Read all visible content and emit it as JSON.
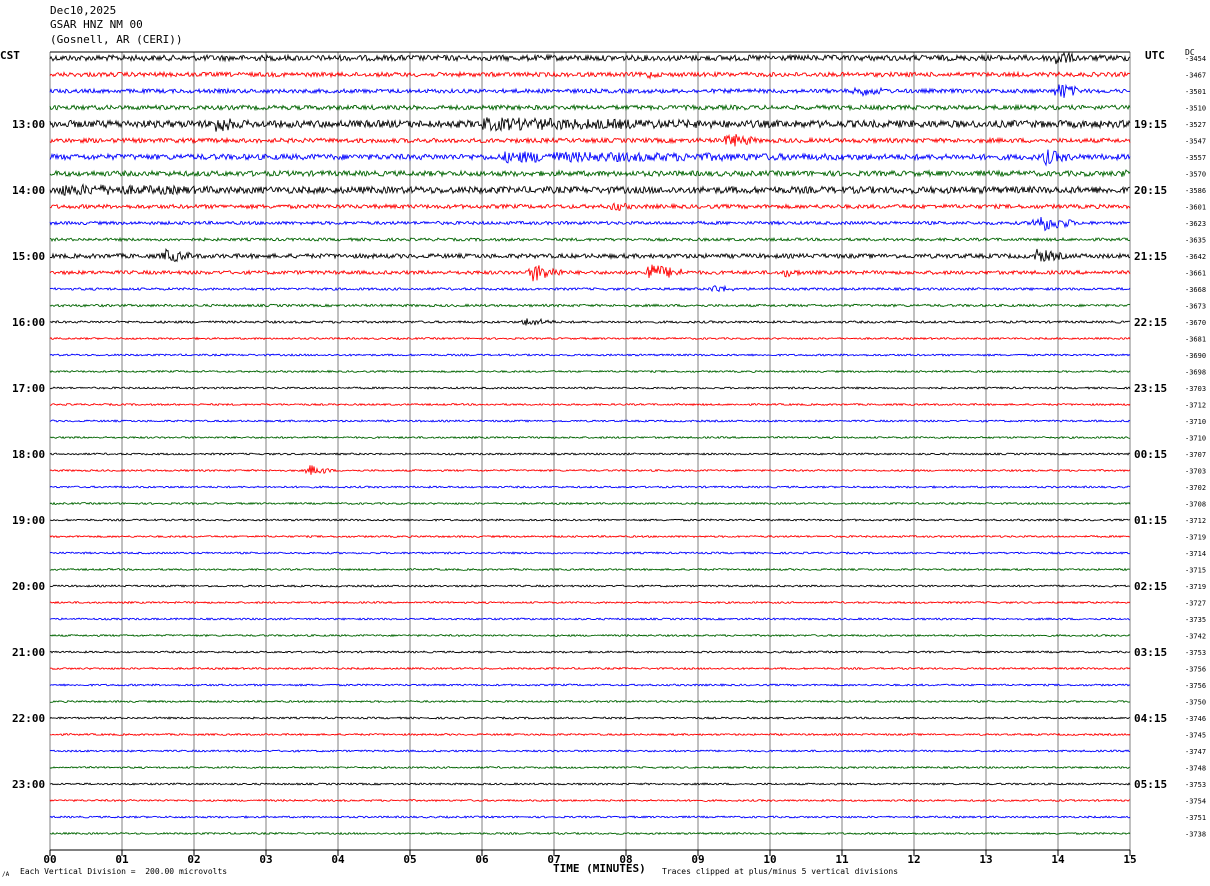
{
  "header": {
    "date": "Dec10,2025",
    "station": "GSAR HNZ NM 00",
    "location": "(Gosnell, AR (CERI))"
  },
  "timezones": {
    "left": "CST",
    "right": "UTC"
  },
  "dc_label": "DC",
  "footer": {
    "scale": "Each Vertical Division =  200.00 microvolts",
    "clip": "Traces clipped at plus/minus 5 vertical divisions",
    "tiny": "/A"
  },
  "colors": {
    "trace_cycle": [
      "#000000",
      "#ff0000",
      "#0000ff",
      "#006400"
    ],
    "grid": "#000000",
    "background": "#ffffff"
  },
  "chart_data": {
    "type": "line",
    "title": "GSAR HNZ NM 00",
    "xlabel": "TIME (MINUTES)",
    "ylabel": "",
    "xlim": [
      0,
      15
    ],
    "x_ticks": [
      "00",
      "01",
      "02",
      "03",
      "04",
      "05",
      "06",
      "07",
      "08",
      "09",
      "10",
      "11",
      "12",
      "13",
      "14",
      "15"
    ],
    "rows": 48,
    "row_minutes": 15,
    "left_hour_labels": [
      "13:00",
      "14:00",
      "15:00",
      "16:00",
      "17:00",
      "18:00",
      "19:00",
      "20:00",
      "21:00",
      "22:00",
      "23:00"
    ],
    "right_hour_labels": [
      "19:15",
      "20:15",
      "21:15",
      "22:15",
      "23:15",
      "00:15",
      "01:15",
      "02:15",
      "03:15",
      "04:15",
      "05:15"
    ],
    "dc_offsets": [
      -3454,
      -3467,
      -3501,
      -3510,
      -3527,
      -3547,
      -3557,
      -3570,
      -3586,
      -3601,
      -3623,
      -3635,
      -3642,
      -3661,
      -3668,
      -3673,
      -3670,
      -3681,
      -3690,
      -3698,
      -3703,
      -3712,
      -3710,
      -3710,
      -3707,
      -3703,
      -3702,
      -3708,
      -3712,
      -3719,
      -3714,
      -3715,
      -3719,
      -3727,
      -3735,
      -3742,
      -3753,
      -3756,
      -3756,
      -3750,
      -3746,
      -3745,
      -3747,
      -3748,
      -3753,
      -3754,
      -3751,
      -3738
    ],
    "row_noise": [
      2.8,
      2.2,
      2.0,
      2.2,
      3.6,
      2.2,
      2.8,
      2.6,
      3.4,
      2.0,
      1.6,
      1.4,
      2.2,
      1.8,
      1.2,
      1.2,
      1.1,
      0.9,
      0.9,
      0.9,
      0.9,
      0.9,
      0.9,
      0.9,
      0.9,
      0.9,
      0.9,
      0.9,
      0.9,
      0.9,
      0.9,
      0.9,
      0.9,
      0.9,
      0.9,
      0.9,
      0.9,
      0.9,
      0.9,
      0.9,
      0.9,
      0.9,
      0.9,
      0.9,
      0.9,
      0.9,
      0.9,
      0.9
    ],
    "events": [
      {
        "row": 0,
        "minute": 13.95,
        "amplitude": 10,
        "duration_min": 0.3
      },
      {
        "row": 1,
        "minute": 8.3,
        "amplitude": 5,
        "duration_min": 0.2
      },
      {
        "row": 2,
        "minute": 11.2,
        "amplitude": 6,
        "duration_min": 0.5
      },
      {
        "row": 2,
        "minute": 14.0,
        "amplitude": 10,
        "duration_min": 0.3
      },
      {
        "row": 4,
        "minute": 2.3,
        "amplitude": 10,
        "duration_min": 0.4
      },
      {
        "row": 4,
        "minute": 6.0,
        "amplitude": 7,
        "duration_min": 5.5
      },
      {
        "row": 5,
        "minute": 9.4,
        "amplitude": 9,
        "duration_min": 0.4
      },
      {
        "row": 6,
        "minute": 6.3,
        "amplitude": 6,
        "duration_min": 7.0
      },
      {
        "row": 6,
        "minute": 13.8,
        "amplitude": 9,
        "duration_min": 0.4
      },
      {
        "row": 7,
        "minute": 14.9,
        "amplitude": 7,
        "duration_min": 0.1
      },
      {
        "row": 8,
        "minute": 0.1,
        "amplitude": 6,
        "duration_min": 4.5
      },
      {
        "row": 9,
        "minute": 7.8,
        "amplitude": 6,
        "duration_min": 0.3
      },
      {
        "row": 10,
        "minute": 13.7,
        "amplitude": 10,
        "duration_min": 0.5
      },
      {
        "row": 12,
        "minute": 1.6,
        "amplitude": 8,
        "duration_min": 0.4
      },
      {
        "row": 12,
        "minute": 13.7,
        "amplitude": 8,
        "duration_min": 0.4
      },
      {
        "row": 13,
        "minute": 6.7,
        "amplitude": 10,
        "duration_min": 0.4
      },
      {
        "row": 13,
        "minute": 8.3,
        "amplitude": 10,
        "duration_min": 0.5
      },
      {
        "row": 13,
        "minute": 10.2,
        "amplitude": 5,
        "duration_min": 0.3
      },
      {
        "row": 14,
        "minute": 9.2,
        "amplitude": 5,
        "duration_min": 0.3
      },
      {
        "row": 16,
        "minute": 6.6,
        "amplitude": 5,
        "duration_min": 0.4
      },
      {
        "row": 25,
        "minute": 3.6,
        "amplitude": 6,
        "duration_min": 0.3
      }
    ]
  }
}
